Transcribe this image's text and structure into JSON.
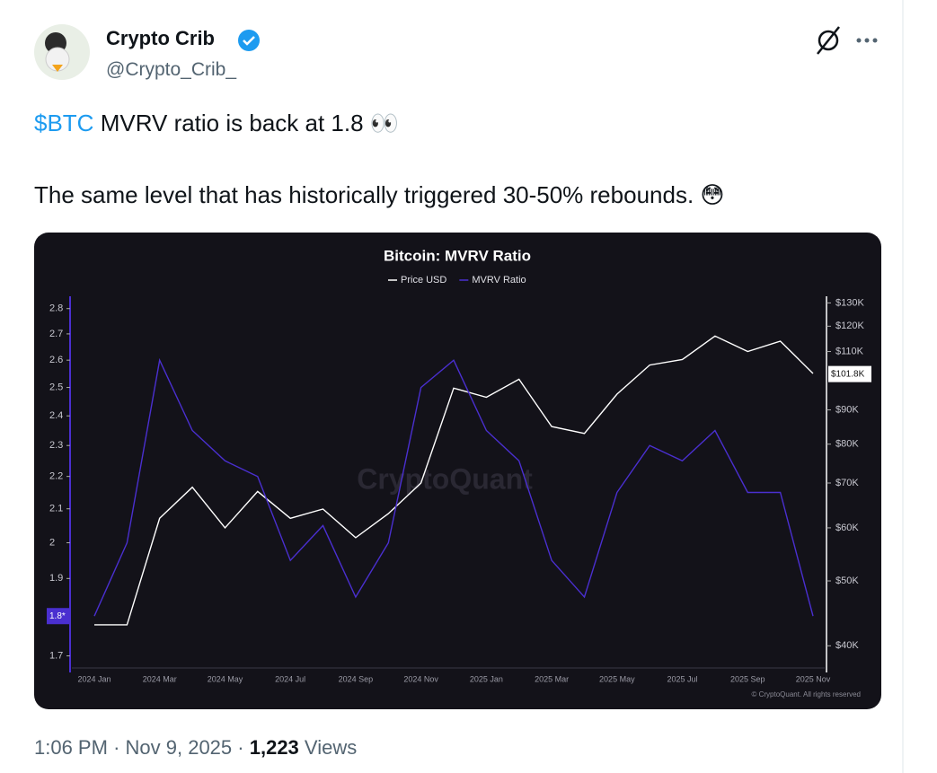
{
  "tweet": {
    "author": {
      "name": "Crypto Crib",
      "handle": "@Crypto_Crib_"
    },
    "text": {
      "cashtag": "$BTC",
      "line1": " MVRV ratio is back at 1.8 👀",
      "line2": "The same level that has historically triggered 30-50% rebounds. 😳"
    },
    "footer": {
      "time": "1:06 PM",
      "separator": "·",
      "date": "Nov 9, 2025",
      "views": "1,223",
      "views_label": "Views"
    }
  },
  "chart": {
    "type": "line",
    "title": "Bitcoin: MVRV Ratio",
    "categories": [
      "2024 Jan",
      null,
      "2024 Mar",
      null,
      "2024 May",
      null,
      "2024 Jul",
      null,
      "2024 Sep",
      null,
      "2024 Nov",
      null,
      "2025 Jan",
      null,
      "2025 Mar",
      null,
      "2025 May",
      null,
      "2025 Jul",
      null,
      "2025 Sep",
      null,
      "2025 Nov"
    ],
    "series": [
      {
        "name": "Price USD",
        "color": "#ffffff",
        "axis": "y2",
        "values": [
          43000,
          43000,
          62000,
          69000,
          60000,
          68000,
          62000,
          64000,
          58000,
          63000,
          70000,
          97000,
          94000,
          100000,
          85000,
          83000,
          95000,
          105000,
          107000,
          116000,
          110000,
          114000,
          102000
        ]
      },
      {
        "name": "MVRV Ratio",
        "color": "#4a2fd0",
        "values": [
          1.8,
          2.0,
          2.6,
          2.35,
          2.25,
          2.2,
          1.95,
          2.05,
          1.85,
          2.0,
          2.5,
          2.6,
          2.35,
          2.25,
          1.95,
          1.85,
          2.15,
          2.3,
          2.25,
          2.35,
          2.15,
          2.15,
          1.8
        ]
      }
    ],
    "log_scale": true,
    "ylim": [
      1.66,
      2.85
    ],
    "yticks": [
      1.7,
      1.8,
      1.9,
      2,
      2.1,
      2.2,
      2.3,
      2.4,
      2.5,
      2.6,
      2.7,
      2.8
    ],
    "y2lim": [
      36500,
      133000
    ],
    "y2ticks": [
      {
        "value": 40000,
        "label": "$40K"
      },
      {
        "value": 50000,
        "label": "$50K"
      },
      {
        "value": 60000,
        "label": "$60K"
      },
      {
        "value": 70000,
        "label": "$70K"
      },
      {
        "value": 80000,
        "label": "$80K"
      },
      {
        "value": 90000,
        "label": "$90K"
      },
      {
        "value": 110000,
        "label": "$110K"
      },
      {
        "value": 120000,
        "label": "$120K"
      },
      {
        "value": 130000,
        "label": "$130K"
      }
    ],
    "markers": [
      {
        "value": 1.8,
        "label": "1.8*",
        "axis": "y"
      },
      {
        "value": 101800,
        "label": "$101.8K",
        "axis": "y2"
      }
    ],
    "watermark": "CryptoQuant",
    "copyright": "© CryptoQuant. All rights reserved"
  }
}
